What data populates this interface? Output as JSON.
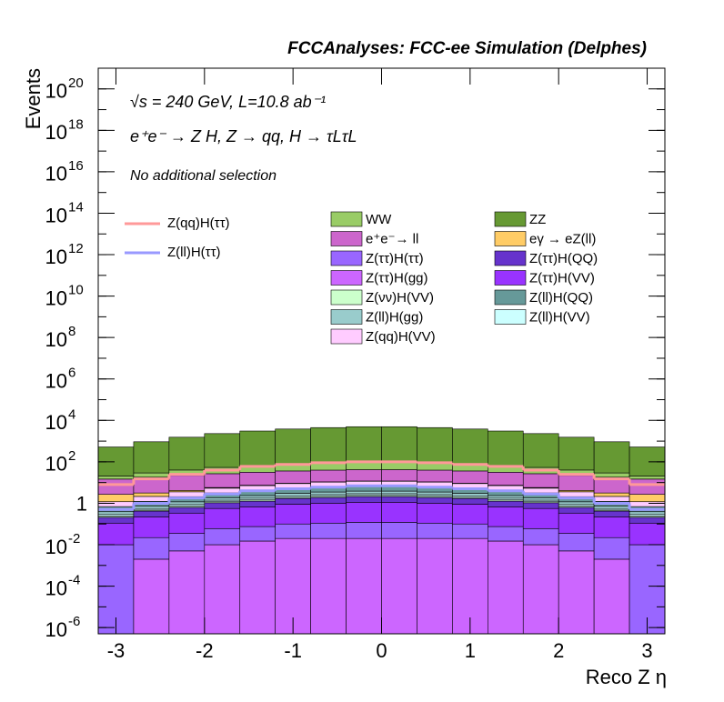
{
  "chart_data": {
    "type": "stacked_histogram",
    "title": "FCCAnalyses: FCC-ee Simulation (Delphes)",
    "annotations": [
      "√s = 240 GeV, L=10.8 ab⁻¹",
      "e⁺e⁻ → Z H, Z → qq, H → τLτL",
      "No additional selection"
    ],
    "xlabel": "Reco Z η",
    "ylabel": "Events",
    "log_y": true,
    "xlim": [
      -3.2,
      3.2
    ],
    "xticks": [
      -3,
      -2,
      -1,
      0,
      1,
      2,
      3
    ],
    "ylim": [
      5e-07,
      1e+21
    ],
    "yticks": [
      {
        "value": 1e-06,
        "label": "10",
        "sup": "-6"
      },
      {
        "value": 0.0001,
        "label": "10",
        "sup": "-4"
      },
      {
        "value": 0.01,
        "label": "10",
        "sup": "-2"
      },
      1,
      {
        "value": 100.0,
        "label": "10",
        "sup": "2"
      },
      {
        "value": 10000.0,
        "label": "10",
        "sup": "4"
      },
      {
        "value": 1000000.0,
        "label": "10",
        "sup": "6"
      },
      {
        "value": 100000000.0,
        "label": "10",
        "sup": "8"
      },
      {
        "value": 10000000000.0,
        "label": "10",
        "sup": "10"
      },
      {
        "value": 1000000000000.0,
        "label": "10",
        "sup": "12"
      },
      {
        "value": 100000000000000.0,
        "label": "10",
        "sup": "14"
      },
      {
        "value": 1e+16,
        "label": "10",
        "sup": "16"
      },
      {
        "value": 1e+18,
        "label": "10",
        "sup": "18"
      },
      {
        "value": 1e+20,
        "label": "10",
        "sup": "20"
      }
    ],
    "bins": [
      -3.2,
      -2.8,
      -2.4,
      -2.0,
      -1.6,
      -1.2,
      -0.8,
      -0.4,
      0,
      0.4,
      0.8,
      1.2,
      1.6,
      2.0,
      2.4,
      2.8,
      3.2
    ],
    "series": [
      {
        "name": "Z(ττ)H(gg)",
        "color": "#cc66ff",
        "values": [
          0,
          0.002,
          0.005,
          0.01,
          0.015,
          0.02,
          0.02,
          0.02,
          0.02,
          0.02,
          0.02,
          0.015,
          0.01,
          0.005,
          0.002,
          0
        ]
      },
      {
        "name": "Z(ττ)H(ττ)",
        "color": "#9966ff",
        "values": [
          0.01,
          0.02,
          0.03,
          0.05,
          0.06,
          0.08,
          0.09,
          0.1,
          0.1,
          0.09,
          0.08,
          0.06,
          0.05,
          0.03,
          0.02,
          0.01
        ]
      },
      {
        "name": "Z(ττ)H(VV)",
        "color": "#9933ff",
        "values": [
          0.1,
          0.2,
          0.3,
          0.5,
          0.6,
          0.8,
          0.9,
          1,
          1,
          0.9,
          0.8,
          0.6,
          0.5,
          0.3,
          0.2,
          0.1
        ]
      },
      {
        "name": "Z(ττ)H(QQ)",
        "color": "#6633cc",
        "values": [
          0.1,
          0.2,
          0.3,
          0.5,
          0.6,
          0.8,
          0.9,
          1,
          1,
          0.9,
          0.8,
          0.6,
          0.5,
          0.3,
          0.2,
          0.1
        ]
      },
      {
        "name": "Z(νν)H(VV)",
        "color": "#ccffcc",
        "values": [
          0.03,
          0.05,
          0.09,
          0.13,
          0.18,
          0.22,
          0.26,
          0.29,
          0.29,
          0.26,
          0.22,
          0.18,
          0.13,
          0.09,
          0.05,
          0.03
        ]
      },
      {
        "name": "Z(ll)H(VV)",
        "color": "#ccffff",
        "values": [
          0.05,
          0.09,
          0.15,
          0.22,
          0.3,
          0.37,
          0.44,
          0.48,
          0.48,
          0.44,
          0.37,
          0.3,
          0.22,
          0.15,
          0.09,
          0.05
        ]
      },
      {
        "name": "Z(ll)H(gg)",
        "color": "#99cccc",
        "values": [
          0.1,
          0.18,
          0.3,
          0.45,
          0.6,
          0.75,
          0.88,
          0.97,
          0.97,
          0.88,
          0.75,
          0.6,
          0.45,
          0.3,
          0.18,
          0.1
        ]
      },
      {
        "name": "Z(ll)H(QQ)",
        "color": "#669999",
        "values": [
          0.3,
          0.5,
          0.9,
          1.3,
          1.8,
          2.2,
          2.6,
          2.9,
          2.9,
          2.6,
          2.2,
          1.8,
          1.3,
          0.9,
          0.5,
          0.3
        ]
      },
      {
        "name": "Z(qq)H(VV)",
        "color": "#ffccff",
        "values": [
          0.5,
          0.9,
          1.5,
          2.2,
          3,
          3.7,
          4.4,
          4.8,
          4.8,
          4.4,
          3.7,
          3,
          2.2,
          1.5,
          0.9,
          0.5
        ]
      },
      {
        "name": "eγ → eZ(ll)",
        "color": "#ffcc66",
        "values": [
          1.5,
          1,
          0.6,
          0.4,
          0.3,
          0.3,
          0.3,
          0.3,
          0.3,
          0.3,
          0.3,
          0.3,
          0.4,
          0.6,
          1,
          1.5
        ]
      },
      {
        "name": "e⁺e⁻→ ll",
        "color": "#cc66cc",
        "values": [
          12,
          15,
          18,
          21,
          24,
          27,
          29,
          30,
          30,
          29,
          27,
          24,
          21,
          18,
          15,
          12
        ]
      },
      {
        "name": "WW",
        "color": "#99cc66",
        "values": [
          6,
          11,
          18,
          27,
          36,
          45,
          53,
          58,
          58,
          53,
          45,
          36,
          27,
          18,
          11,
          6
        ]
      },
      {
        "name": "ZZ",
        "color": "#669933",
        "values": [
          500,
          900,
          1500,
          2250,
          3000,
          3750,
          4400,
          4850,
          4850,
          4400,
          3750,
          3000,
          2250,
          1500,
          900,
          500
        ]
      }
    ],
    "lines": [
      {
        "name": "Z(qq)H(ττ)",
        "color": "#ff9999",
        "values": [
          8,
          15,
          25,
          40,
          60,
          75,
          90,
          100,
          100,
          90,
          75,
          60,
          40,
          25,
          15,
          8
        ]
      },
      {
        "name": "Z(ll)H(ττ)",
        "color": "#9999ff",
        "values": [
          0.5,
          1,
          1.8,
          2.8,
          4,
          5,
          6,
          7,
          7,
          6,
          5,
          4,
          2.8,
          1.8,
          1,
          0.5
        ]
      }
    ]
  }
}
